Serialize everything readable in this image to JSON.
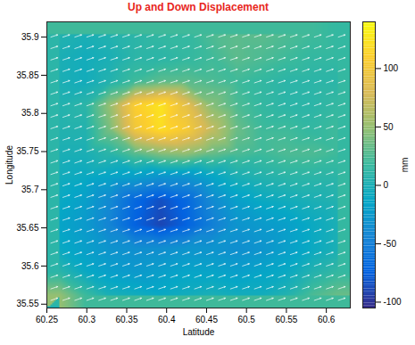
{
  "chart_data": {
    "type": "heatmap",
    "title": "Up and Down Displacement",
    "x_label": "Latitude",
    "y_label": "Longitude",
    "xlim": [
      60.25,
      60.63
    ],
    "ylim": [
      35.545,
      35.92
    ],
    "xticks": [
      60.25,
      60.3,
      60.35,
      60.4,
      60.45,
      60.5,
      60.55,
      60.6
    ],
    "yticks": [
      35.55,
      35.6,
      35.65,
      35.7,
      35.75,
      35.8,
      35.85,
      35.9
    ],
    "cells": {
      "x": [
        60.266,
        60.298,
        60.329,
        60.361,
        60.393,
        60.424,
        60.456,
        60.488,
        60.519,
        60.551,
        60.583,
        60.614
      ],
      "y": [
        35.904,
        35.873,
        35.842,
        35.811,
        35.779,
        35.748,
        35.717,
        35.686,
        35.654,
        35.623,
        35.592,
        35.561
      ],
      "values": [
        [
          5,
          0,
          5,
          10,
          15,
          15,
          25,
          30,
          30,
          25,
          20,
          15
        ],
        [
          0,
          -5,
          0,
          10,
          10,
          15,
          20,
          30,
          25,
          20,
          15,
          15
        ],
        [
          0,
          -5,
          5,
          20,
          30,
          30,
          25,
          20,
          15,
          10,
          10,
          10
        ],
        [
          5,
          10,
          50,
          110,
          125,
          90,
          45,
          25,
          15,
          10,
          10,
          15
        ],
        [
          5,
          5,
          40,
          100,
          120,
          105,
          70,
          35,
          20,
          20,
          15,
          20
        ],
        [
          0,
          0,
          10,
          30,
          45,
          50,
          35,
          25,
          20,
          25,
          25,
          20
        ],
        [
          -5,
          -10,
          -15,
          -20,
          -30,
          -30,
          -15,
          0,
          5,
          10,
          10,
          10
        ],
        [
          -10,
          -20,
          -40,
          -70,
          -85,
          -70,
          -40,
          -20,
          -10,
          -5,
          0,
          5
        ],
        [
          -15,
          -25,
          -45,
          -75,
          -90,
          -75,
          -50,
          -30,
          -25,
          -20,
          -10,
          0
        ],
        [
          -10,
          -20,
          -30,
          -35,
          -35,
          -30,
          -30,
          -35,
          -30,
          -20,
          -10,
          0
        ],
        [
          10,
          -10,
          -20,
          -25,
          -20,
          -15,
          -15,
          -20,
          -15,
          -10,
          5,
          15
        ],
        [
          50,
          20,
          0,
          -5,
          -10,
          -5,
          0,
          -5,
          -5,
          5,
          25,
          35
        ]
      ]
    },
    "colorbar": {
      "label": "mm",
      "range": [
        -105,
        140
      ],
      "ticks": [
        -100,
        -50,
        0,
        50,
        100
      ]
    },
    "arrows": {
      "x": [
        60.255,
        60.27,
        60.285,
        60.3,
        60.315,
        60.33,
        60.345,
        60.36,
        60.375,
        60.39,
        60.405,
        60.42,
        60.435,
        60.45,
        60.465,
        60.48,
        60.495,
        60.51,
        60.525,
        60.54,
        60.555,
        60.57,
        60.585,
        60.6,
        60.615
      ],
      "y": [
        35.555,
        35.57,
        35.585,
        35.6,
        35.615,
        35.63,
        35.645,
        35.66,
        35.675,
        35.69,
        35.705,
        35.72,
        35.735,
        35.75,
        35.765,
        35.78,
        35.795,
        35.81,
        35.825,
        35.84,
        35.855,
        35.87,
        35.885,
        35.9
      ],
      "dx": 0.0085,
      "dy": 0.003
    }
  }
}
